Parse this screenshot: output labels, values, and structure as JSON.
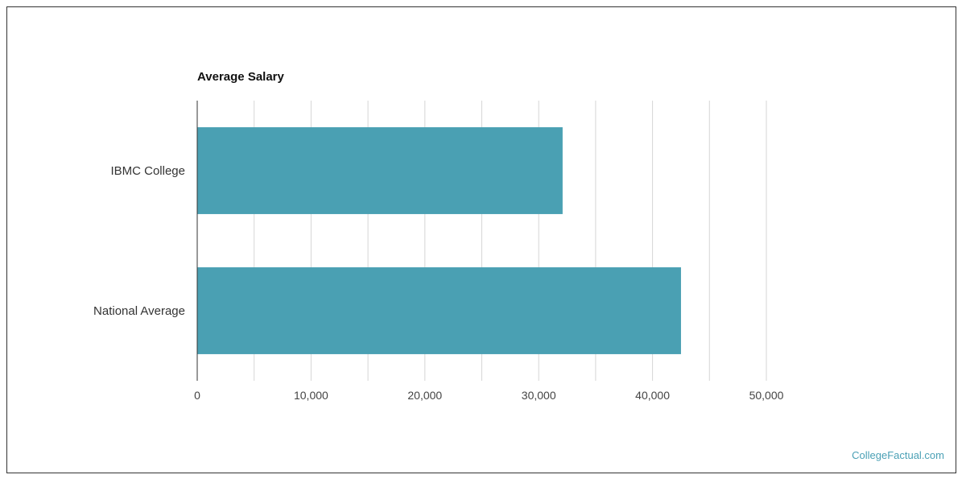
{
  "chart_data": {
    "type": "bar",
    "orientation": "horizontal",
    "title": "Average Salary",
    "categories": [
      "IBMC College",
      "National Average"
    ],
    "values": [
      32100,
      42500
    ],
    "xlabel": "",
    "ylabel": "",
    "xlim": [
      0,
      50000
    ],
    "ticks": [
      0,
      10000,
      20000,
      30000,
      40000,
      50000
    ],
    "tick_labels": [
      "0",
      "10,000",
      "20,000",
      "30,000",
      "40,000",
      "50,000"
    ],
    "grid": true,
    "bar_color": "#4aa0b3",
    "legend": "none"
  },
  "footer": {
    "source_label": "CollegeFactual.com",
    "source_color": "#4aa0b5"
  }
}
